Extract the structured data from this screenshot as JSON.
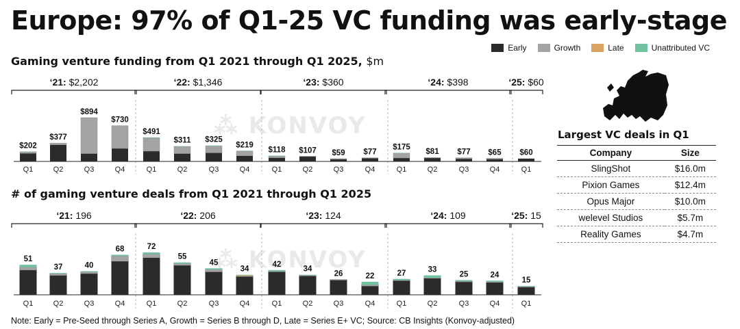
{
  "title": "Europe: 97% of Q1-25 VC funding was early-stage",
  "legend": [
    {
      "label": "Early",
      "color": "#2b2b2b"
    },
    {
      "label": "Growth",
      "color": "#a3a3a3"
    },
    {
      "label": "Late",
      "color": "#d9a460"
    },
    {
      "label": "Unattributed VC",
      "color": "#6fc19f"
    }
  ],
  "watermark": "KONVOY",
  "chart_data": [
    {
      "type": "bar",
      "stacked": true,
      "title": "Gaming venture funding from Q1 2021 through Q1 2025,",
      "unit": "$m",
      "categories": [
        "Q1",
        "Q2",
        "Q3",
        "Q4",
        "Q1",
        "Q2",
        "Q3",
        "Q4",
        "Q1",
        "Q2",
        "Q3",
        "Q4",
        "Q1",
        "Q2",
        "Q3",
        "Q4",
        "Q1"
      ],
      "totals": [
        202,
        377,
        894,
        730,
        491,
        311,
        325,
        219,
        118,
        107,
        59,
        77,
        175,
        81,
        77,
        65,
        60
      ],
      "total_labels": [
        "$202",
        "$377",
        "$894",
        "$730",
        "$491",
        "$311",
        "$325",
        "$219",
        "$118",
        "$107",
        "$59",
        "$77",
        "$175",
        "$81",
        "$77",
        "$65",
        "$60"
      ],
      "series": [
        {
          "name": "Early",
          "values": [
            165,
            340,
            160,
            265,
            210,
            160,
            175,
            115,
            75,
            100,
            45,
            65,
            70,
            70,
            55,
            48,
            58
          ]
        },
        {
          "name": "Growth",
          "values": [
            30,
            35,
            734,
            465,
            275,
            145,
            140,
            95,
            35,
            5,
            12,
            10,
            100,
            8,
            20,
            15,
            0
          ]
        },
        {
          "name": "Late",
          "values": [
            0,
            0,
            0,
            0,
            0,
            0,
            0,
            0,
            0,
            0,
            0,
            0,
            0,
            0,
            0,
            0,
            0
          ]
        },
        {
          "name": "Unattributed VC",
          "values": [
            7,
            2,
            0,
            0,
            6,
            6,
            10,
            9,
            8,
            2,
            2,
            2,
            5,
            3,
            2,
            2,
            2
          ]
        }
      ],
      "groups": [
        {
          "year": "‘21:",
          "total": "$2,202"
        },
        {
          "year": "‘22:",
          "total": "$1,346"
        },
        {
          "year": "‘23:",
          "total": "$360"
        },
        {
          "year": "‘24:",
          "total": "$398"
        },
        {
          "year": "‘25:",
          "total": "$60"
        }
      ],
      "ylim": [
        0,
        894
      ]
    },
    {
      "type": "bar",
      "stacked": true,
      "title": "# of gaming venture deals from Q1 2021 through Q1 2025",
      "categories": [
        "Q1",
        "Q2",
        "Q3",
        "Q4",
        "Q1",
        "Q2",
        "Q3",
        "Q4",
        "Q1",
        "Q2",
        "Q3",
        "Q4",
        "Q1",
        "Q2",
        "Q3",
        "Q4",
        "Q1"
      ],
      "totals": [
        51,
        37,
        40,
        68,
        72,
        55,
        45,
        34,
        42,
        34,
        26,
        22,
        27,
        33,
        25,
        24,
        15
      ],
      "total_labels": [
        "51",
        "37",
        "40",
        "68",
        "72",
        "55",
        "45",
        "34",
        "42",
        "34",
        "26",
        "22",
        "27",
        "33",
        "25",
        "24",
        "15"
      ],
      "series": [
        {
          "name": "Early",
          "values": [
            42,
            33,
            36,
            57,
            63,
            50,
            39,
            31,
            39,
            32,
            25,
            15,
            24,
            28,
            22,
            21,
            13
          ]
        },
        {
          "name": "Growth",
          "values": [
            5,
            3,
            3,
            9,
            6,
            3,
            4,
            1,
            1,
            1,
            1,
            2,
            1,
            1,
            1,
            1,
            1
          ]
        },
        {
          "name": "Late",
          "values": [
            0,
            0,
            0,
            0,
            0,
            0,
            0,
            1,
            0,
            0,
            0,
            0,
            0,
            0,
            0,
            0,
            0
          ]
        },
        {
          "name": "Unattributed VC",
          "values": [
            4,
            1,
            1,
            2,
            3,
            2,
            2,
            1,
            2,
            1,
            0,
            5,
            2,
            4,
            2,
            2,
            1
          ]
        }
      ],
      "groups": [
        {
          "year": "‘21:",
          "total": "196"
        },
        {
          "year": "‘22:",
          "total": "206"
        },
        {
          "year": "‘23:",
          "total": "124"
        },
        {
          "year": "‘24:",
          "total": "109"
        },
        {
          "year": "‘25:",
          "total": "15"
        }
      ],
      "ylim": [
        0,
        72
      ]
    }
  ],
  "deals": {
    "title": "Largest VC deals in Q1",
    "headers": [
      "Company",
      "Size"
    ],
    "rows": [
      {
        "company": "SlingShot",
        "size": "$16.0m"
      },
      {
        "company": "Pixion Games",
        "size": "$12.4m"
      },
      {
        "company": "Opus Major",
        "size": "$10.0m"
      },
      {
        "company": "welevel Studios",
        "size": "$5.7m"
      },
      {
        "company": "Reality Games",
        "size": "$4.7m"
      }
    ]
  },
  "note": "Note: Early = Pre-Seed through Series A, Growth = Series B through D, Late = Series E+ VC; Source: CB Insights (Konvoy-adjusted)"
}
